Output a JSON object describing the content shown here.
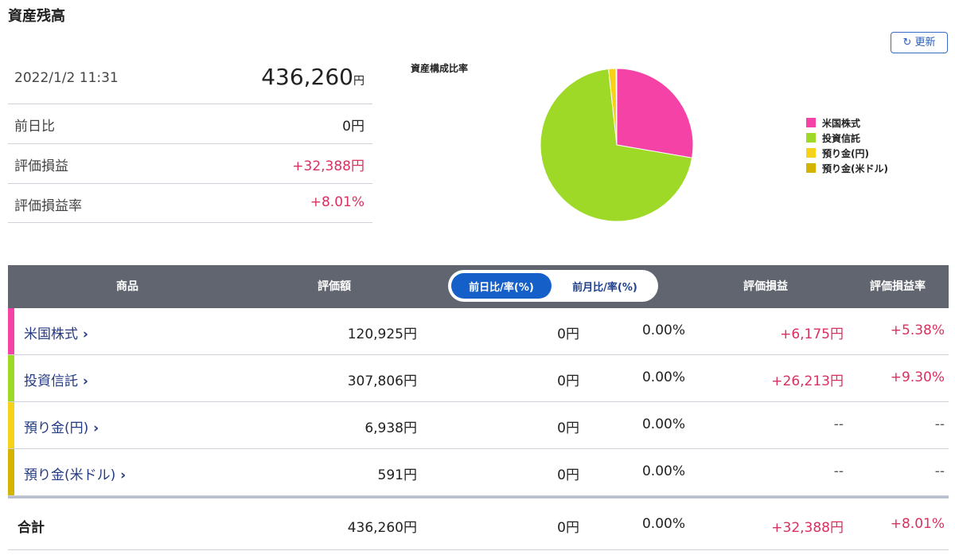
{
  "header": {
    "title": "資産残高",
    "refresh": "更新"
  },
  "summary": {
    "datetime": "2022/1/2 11:31",
    "total": "436,260",
    "total_unit": "円",
    "rows": [
      [
        "前日比",
        "0円"
      ],
      [
        "評価損益",
        "+32,388円"
      ],
      [
        "評価損益率",
        "+8.01%"
      ]
    ]
  },
  "chart_data": {
    "type": "pie",
    "title": "資産構成比率",
    "categories": [
      "米国株式",
      "投資信託",
      "預り金(円)",
      "預り金(米ドル)"
    ],
    "values": [
      120925,
      307806,
      6938,
      591
    ],
    "colors": [
      "#f542a7",
      "#9ed928",
      "#f7d21b",
      "#d4b400"
    ],
    "legend": "right"
  },
  "table": {
    "headers": [
      "商品",
      "評価額",
      "前日比/率(%)",
      "前月比/率(%)",
      "評価損益",
      "評価損益率"
    ],
    "rows": [
      [
        "米国株式",
        "120,925円",
        "0円",
        "0.00%",
        "+6,175円",
        "+5.38%"
      ],
      [
        "投資信託",
        "307,806円",
        "0円",
        "0.00%",
        "+26,213円",
        "+9.30%"
      ],
      [
        "預り金(円)",
        "6,938円",
        "0円",
        "0.00%",
        "--",
        "--"
      ],
      [
        "預り金(米ドル)",
        "591円",
        "0円",
        "0.00%",
        "--",
        "--"
      ]
    ],
    "total": [
      "合計",
      "436,260円",
      "0円",
      "0.00%",
      "+32,388円",
      "+8.01%"
    ]
  }
}
